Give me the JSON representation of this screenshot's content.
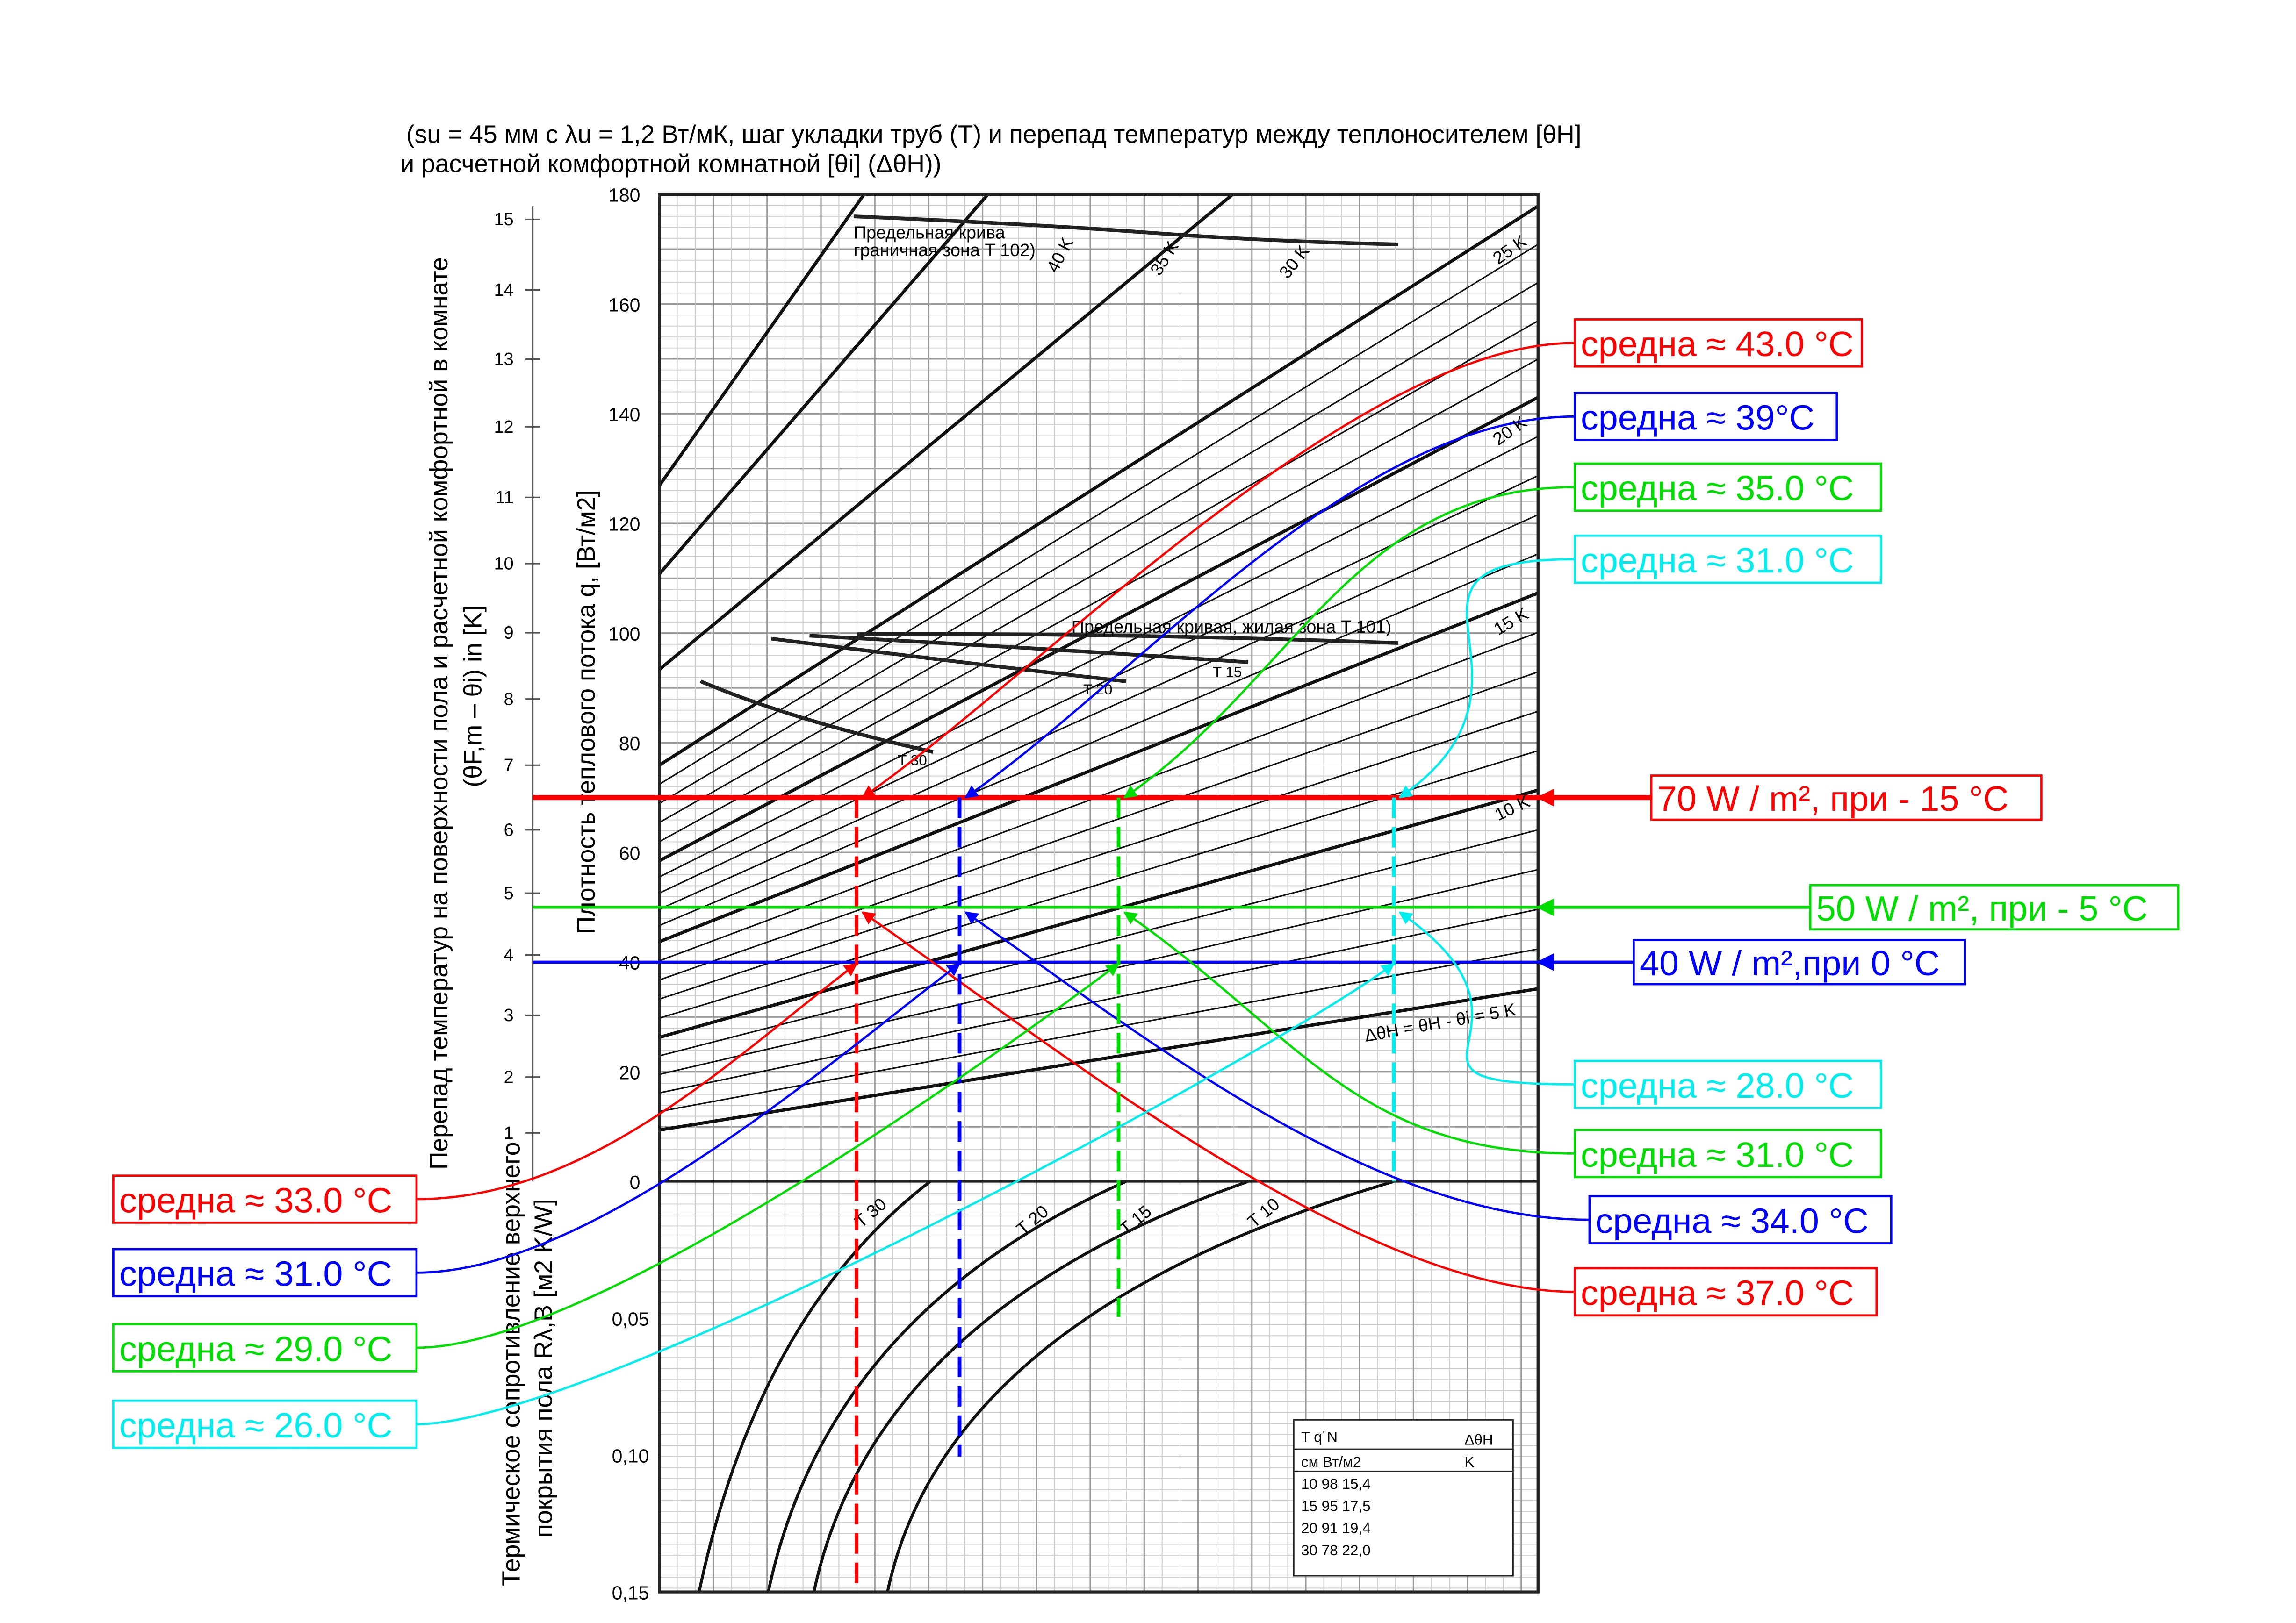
{
  "subtitle_line1": "(su = 45 мм с λu = 1,2 Вт/мК, шаг укладки труб (T) и перепад температур между теплоносителем [θH]",
  "subtitle_line2": "и расчетной комфортной комнатной [θi] (ΔθH))",
  "chart_data": {
    "type": "line",
    "title": "(su = 45 мм с λu = 1,2 Вт/мК, шаг укладки труб (T) и перепад температур между теплоносителем [θH] и расчетной комфортной комнатной [θi] (ΔθH))",
    "ylabel_left_1": "Перепад температур на поверхности пола и расчетной комфортной в комнате",
    "ylabel_left_2": "(θF,m – θi) in [K]",
    "ylabel": "Плотность теплового потока q, [Вт/м2]",
    "ylabel_lower_1": "Термическое сопротивление верхнего",
    "ylabel_lower_2": "покрытия пола Rλ,B [м2 K/W]",
    "ylim": [
      0,
      180
    ],
    "yticks": [
      "0",
      "20",
      "40",
      "60",
      "80",
      "100",
      "120",
      "140",
      "160",
      "180"
    ],
    "k_ticks": [
      "15",
      "14",
      "13",
      "12",
      "11",
      "10",
      "9",
      "8",
      "7",
      "6",
      "5",
      "4",
      "3",
      "2",
      "1"
    ],
    "r_ticks": [
      "0,05",
      "0,10",
      "0,15"
    ],
    "r_lim": [
      0,
      0.15
    ],
    "delta_lines": [
      "40 K",
      "35 K",
      "30 K",
      "25 K",
      "20 K",
      "15 K",
      "10 K"
    ],
    "delta_5_label": "ΔθH = θH - θi = 5 K",
    "pipe_labels": [
      "T 30",
      "T 20",
      "T 15",
      "T 10"
    ],
    "limit_boundary_label_1": "Предельная крива",
    "limit_boundary_label_2": "граничная зона T 102)",
    "limit_living_label": "Предельная кривая, жилая зона T 101)",
    "limit_pipe_labels": [
      "T 30",
      "T 20",
      "T 15"
    ],
    "table": {
      "header1": [
        "T q˙N",
        "ΔθH"
      ],
      "header2": [
        "см Вт/м2",
        "K"
      ],
      "rows": [
        "10 98 15,4",
        "15 95 17,5",
        "20 91 19,4",
        "30 78 22,0"
      ]
    },
    "operating_points": [
      {
        "q": 70,
        "label": "70 W / m², при - 15 °C",
        "color": "#ff0000"
      },
      {
        "q": 50,
        "label": "50 W / m², при - 5 °C",
        "color": "#00dd00"
      },
      {
        "q": 40,
        "label": "40 W / m²,при 0 °C",
        "color": "#0000ff"
      }
    ],
    "series": [
      {
        "name": "T 30",
        "color": "#ff0000",
        "labels": [
          "средна ≈ 43.0 °C",
          "средна ≈ 37.0 °C",
          "средна ≈ 33.0 °C"
        ]
      },
      {
        "name": "T 20",
        "color": "#0000ff",
        "labels": [
          "средна ≈ 39°C",
          "средна ≈ 34.0 °C",
          "средна ≈ 31.0 °C"
        ]
      },
      {
        "name": "T 15",
        "color": "#00dd00",
        "labels": [
          "средна ≈ 35.0 °C",
          "средна ≈ 31.0 °C",
          "средна ≈ 29.0 °C"
        ]
      },
      {
        "name": "T 10",
        "color": "#00eeee",
        "labels": [
          "средна ≈ 31.0 °C",
          "средна ≈ 28.0 °C",
          "средна ≈ 26.0 °C"
        ]
      }
    ]
  }
}
